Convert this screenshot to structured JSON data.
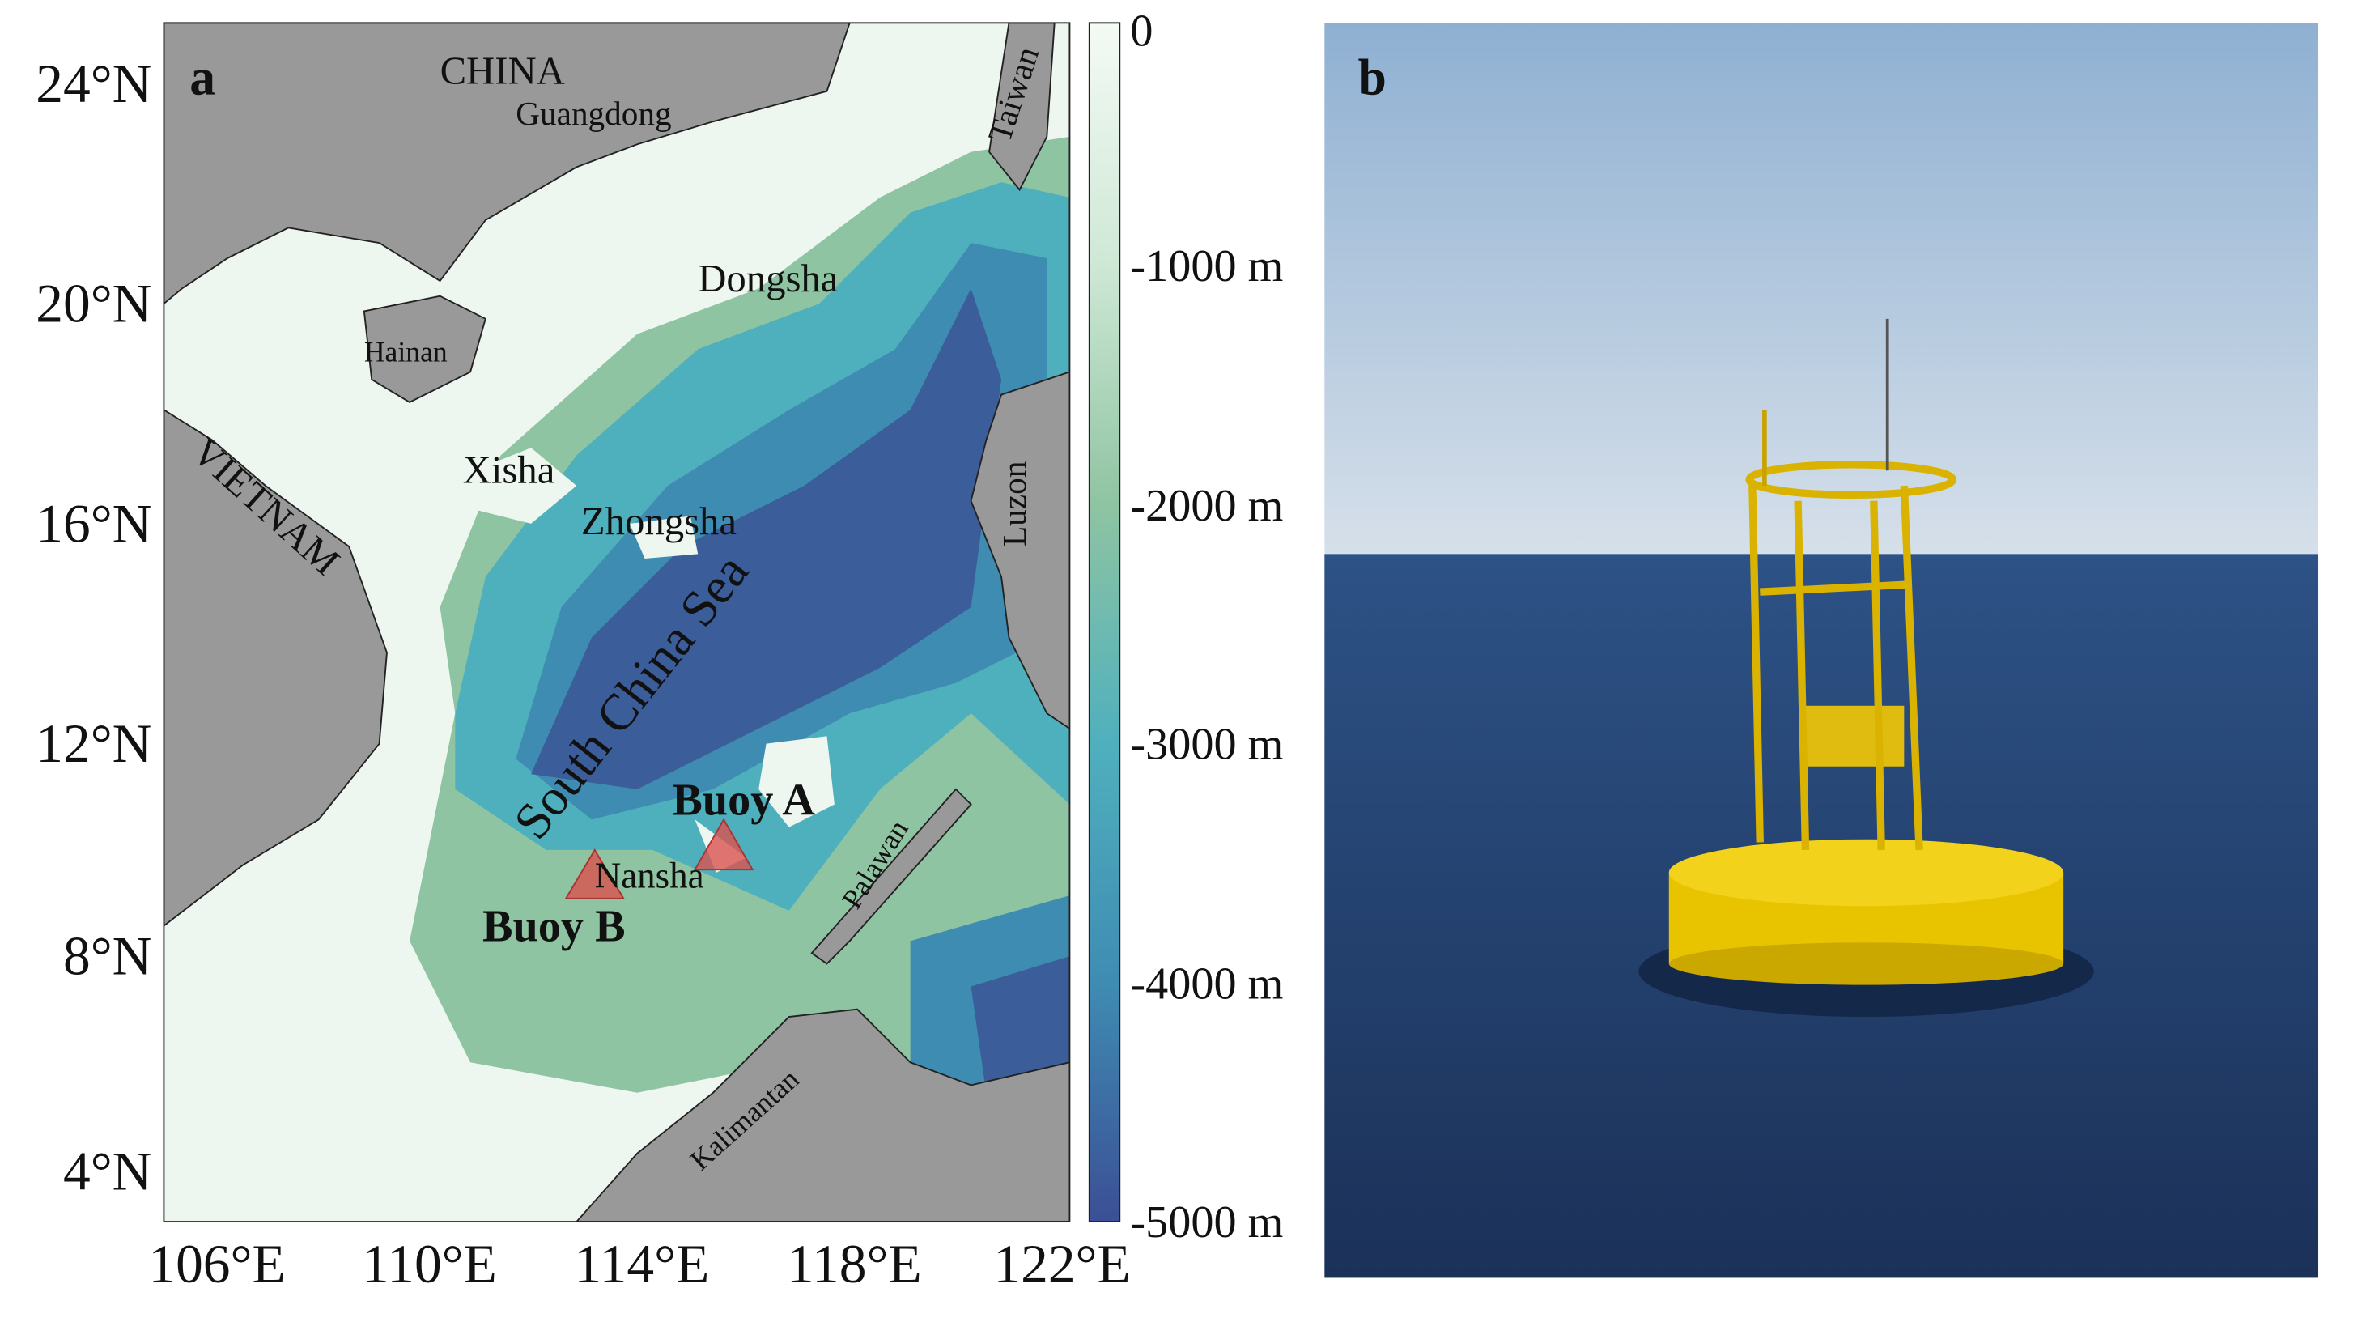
{
  "map": {
    "panel_label": "a",
    "lon_ticks": [
      "106°E",
      "110°E",
      "114°E",
      "118°E",
      "122°E"
    ],
    "lat_ticks": [
      "24°N",
      "20°N",
      "16°N",
      "12°N",
      "8°N",
      "4°N"
    ],
    "colorbar_ticks": [
      "0",
      "-1000 m",
      "-2000 m",
      "-3000 m",
      "-4000 m",
      "-5000 m"
    ],
    "places": {
      "china": "CHINA",
      "guangdong": "Guangdong",
      "dongsha": "Dongsha",
      "hainan": "Hainan",
      "vietnam": "VIETNAM",
      "xisha": "Xisha",
      "zhongsha": "Zhongsha",
      "sea": "South China Sea",
      "taiwan": "Taiwan",
      "luzon": "Luzon",
      "nansha": "Nansha",
      "palawan": "Palawan",
      "kalimantan": "Kalimantan"
    },
    "buoys": [
      "Buoy A",
      "Buoy B"
    ]
  },
  "photo": {
    "panel_label": "b"
  }
}
